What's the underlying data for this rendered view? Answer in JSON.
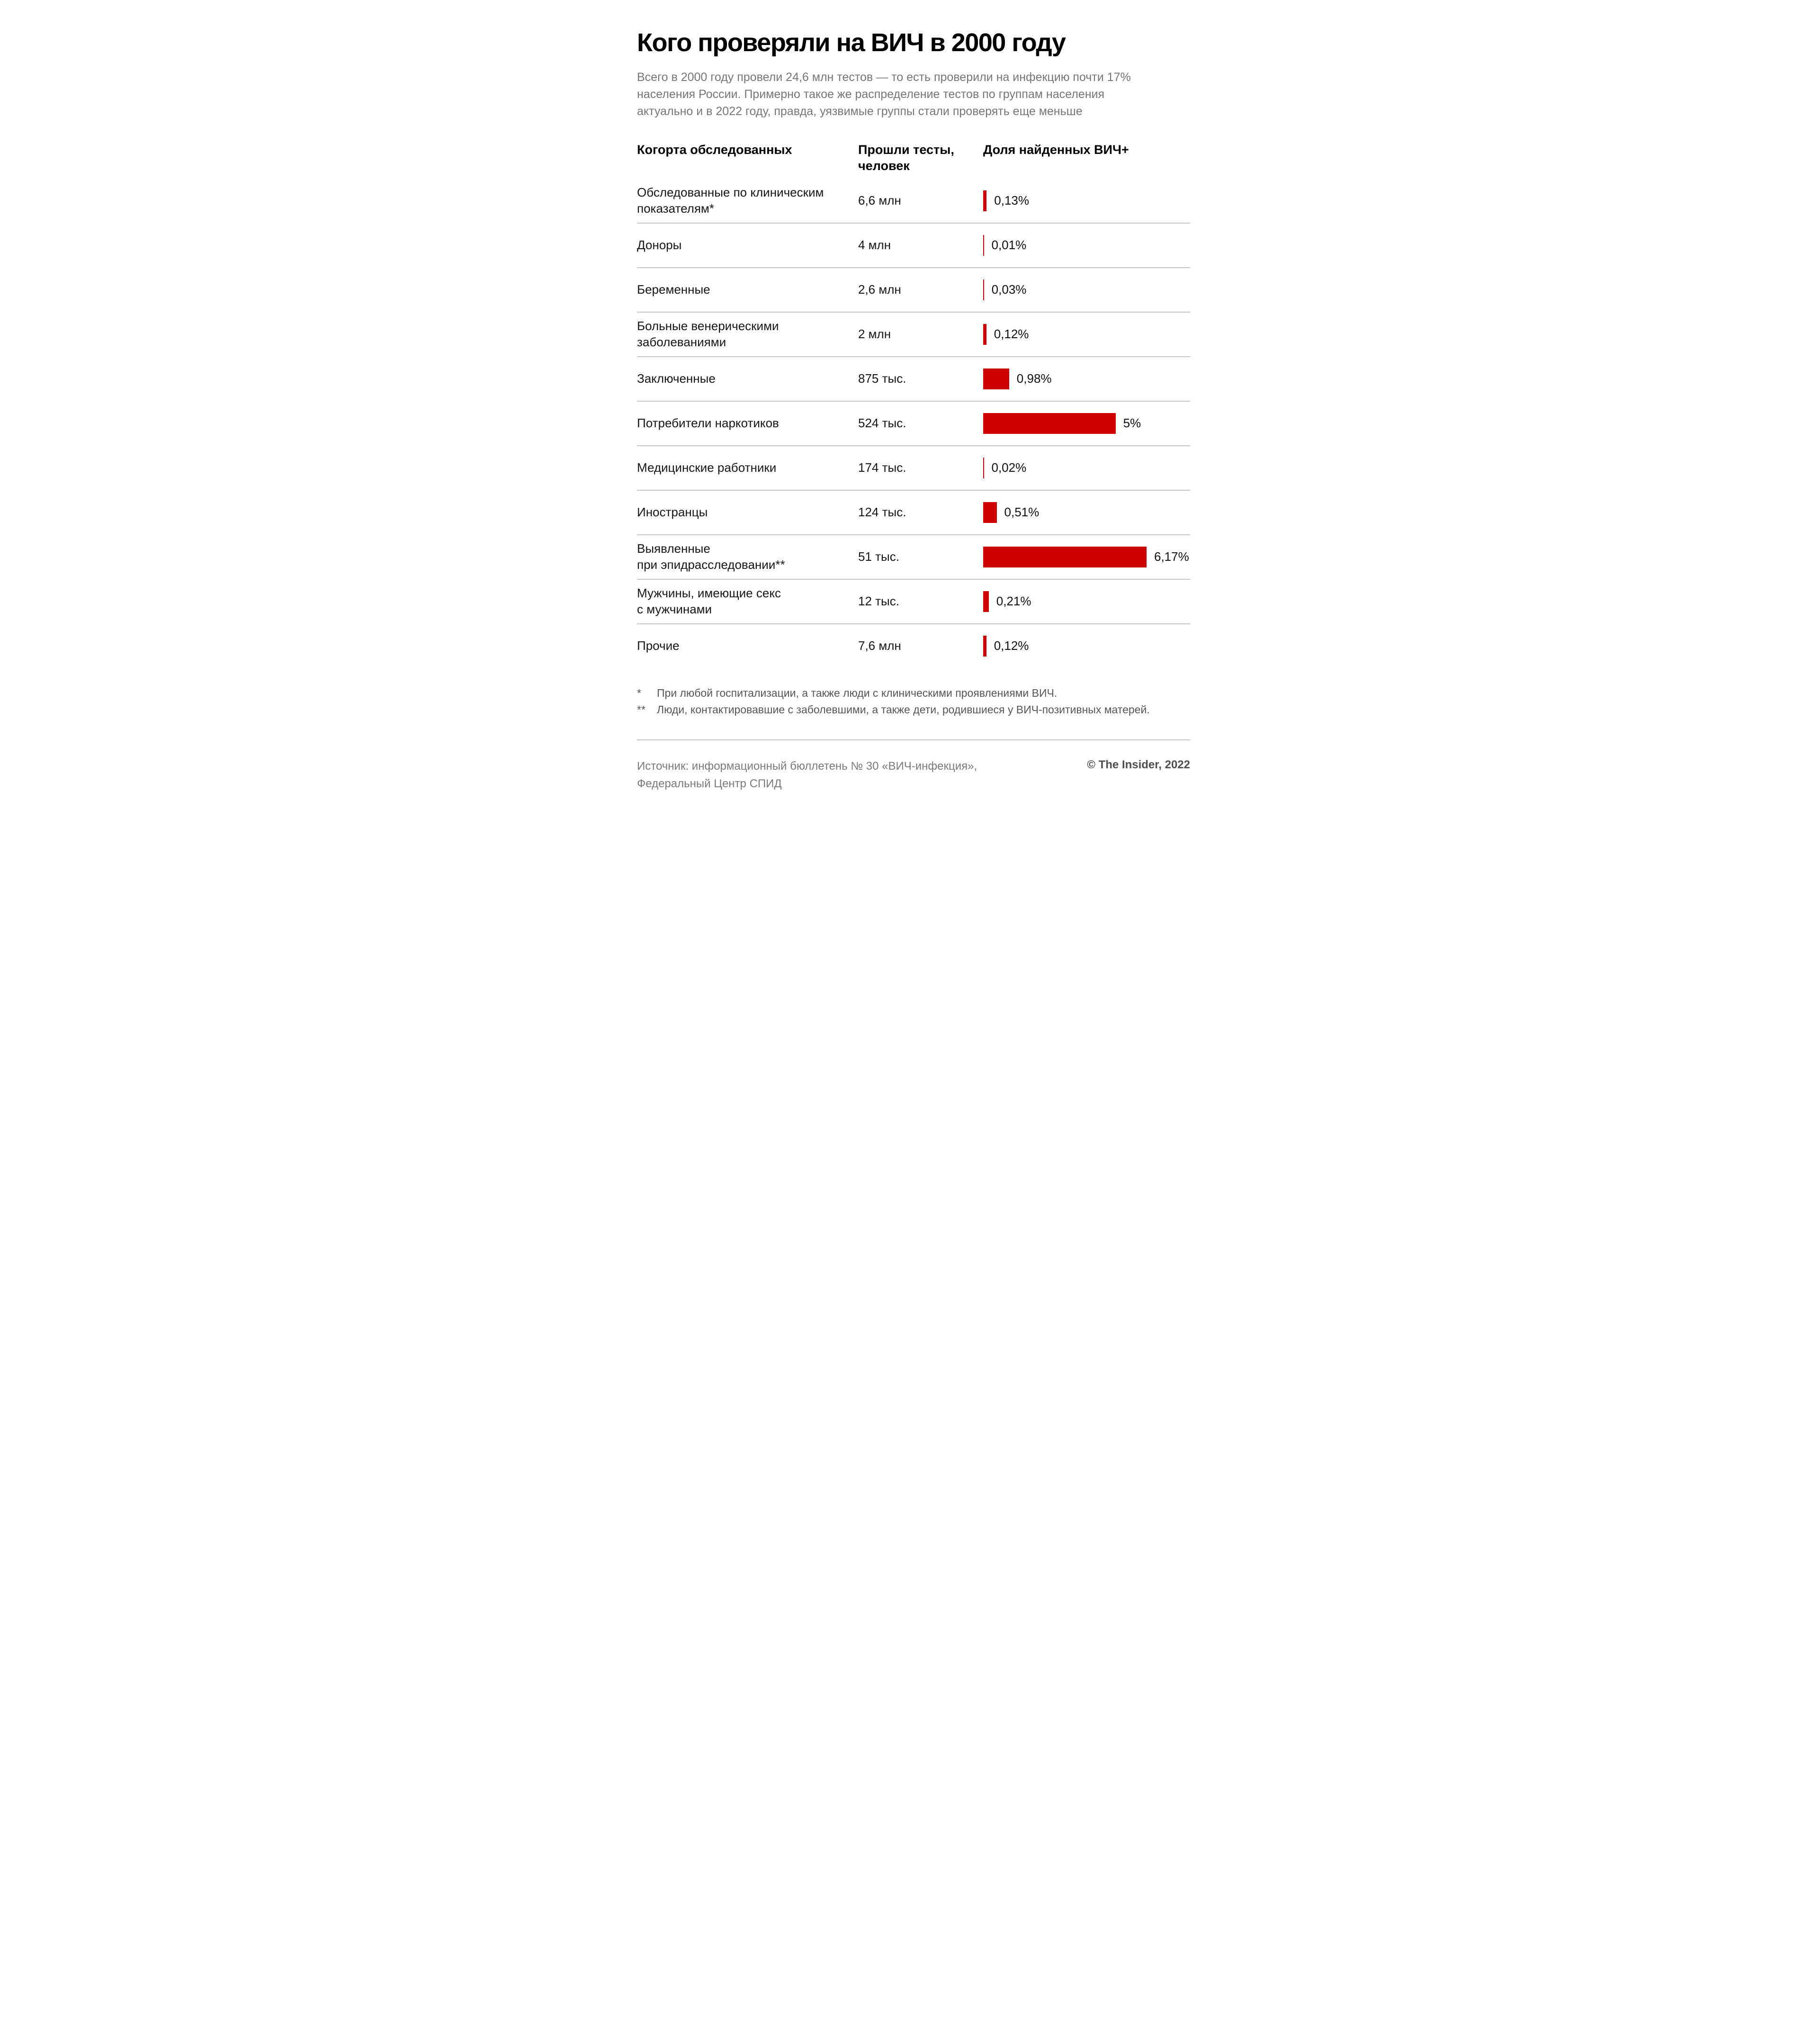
{
  "title": "Кого проверяли на ВИЧ в 2000 году",
  "subtitle": "Всего в 2000 году провели 24,6 млн тестов — то есть проверили на инфекцию почти 17% населения России. Примерно такое же распределение тестов по группам населения актуально и в 2022 году, правда, уязвимые группы стали проверять еще меньше",
  "table": {
    "headers": {
      "cohort": "Когорта обследованных",
      "tests": "Прошли тесты,\nчеловек",
      "share": "Доля найденных ВИЧ+"
    },
    "rows": [
      {
        "label": "Обследованные по клиническим\nпоказателям*",
        "tests": "6,6 млн",
        "share_value": 0.13,
        "share_label": "0,13%"
      },
      {
        "label": "Доноры",
        "tests": "4 млн",
        "share_value": 0.01,
        "share_label": "0,01%"
      },
      {
        "label": "Беременные",
        "tests": "2,6 млн",
        "share_value": 0.03,
        "share_label": "0,03%"
      },
      {
        "label": "Больные венерическими\nзаболеваниями",
        "tests": "2 млн",
        "share_value": 0.12,
        "share_label": "0,12%"
      },
      {
        "label": "Заключенные",
        "tests": "875 тыс.",
        "share_value": 0.98,
        "share_label": "0,98%"
      },
      {
        "label": "Потребители наркотиков",
        "tests": "524 тыс.",
        "share_value": 5,
        "share_label": "5%"
      },
      {
        "label": "Медицинские работники",
        "tests": "174 тыс.",
        "share_value": 0.02,
        "share_label": "0,02%"
      },
      {
        "label": "Иностранцы",
        "tests": "124 тыс.",
        "share_value": 0.51,
        "share_label": "0,51%"
      },
      {
        "label": "Выявленные\nпри эпидрасследовании**",
        "tests": "51 тыс.",
        "share_value": 6.17,
        "share_label": "6,17%"
      },
      {
        "label": "Мужчины, имеющие секс\nс мужчинами",
        "tests": "12 тыс.",
        "share_value": 0.21,
        "share_label": "0,21%"
      },
      {
        "label": "Прочие",
        "tests": "7,6 млн",
        "share_value": 0.12,
        "share_label": "0,12%"
      }
    ]
  },
  "chart_data": {
    "type": "bar",
    "orientation": "horizontal",
    "title": "Кого проверяли на ВИЧ в 2000 году",
    "categories": [
      "Обследованные по клиническим показателям*",
      "Доноры",
      "Беременные",
      "Больные венерическими заболеваниями",
      "Заключенные",
      "Потребители наркотиков",
      "Медицинские работники",
      "Иностранцы",
      "Выявленные при эпидрасследовании**",
      "Мужчины, имеющие секс с мужчинами",
      "Прочие"
    ],
    "series": [
      {
        "name": "Прошли тесты, человек",
        "values_text": [
          "6,6 млн",
          "4 млн",
          "2,6 млн",
          "2 млн",
          "875 тыс.",
          "524 тыс.",
          "174 тыс.",
          "124 тыс.",
          "51 тыс.",
          "12 тыс.",
          "7,6 млн"
        ]
      },
      {
        "name": "Доля найденных ВИЧ+ (%)",
        "values": [
          0.13,
          0.01,
          0.03,
          0.12,
          0.98,
          5,
          0.02,
          0.51,
          6.17,
          0.21,
          0.12
        ]
      }
    ],
    "xlim": [
      0,
      6.17
    ],
    "grid": false,
    "legend_position": "none",
    "bar_color": "#cc0000"
  },
  "footnotes": [
    {
      "marker": "*",
      "text": "При любой госпитализации, а также люди с клиническими проявлениями ВИЧ."
    },
    {
      "marker": "**",
      "text": "Люди, контактировавшие с заболевшими, а также дети, родившиеся у ВИЧ-позитивных матерей."
    }
  ],
  "source": "Источник: информационный бюллетень № 30 «ВИЧ-инфекция»,\nФедеральный Центр СПИД",
  "copyright": "© The Insider, 2022",
  "colors": {
    "bar": "#cc0000",
    "divider": "#c6c6c6",
    "subtitle_text": "#767676",
    "footnote_text": "#565656",
    "source_text": "#7a7a7a",
    "copyright_text": "#4f4f4f"
  }
}
